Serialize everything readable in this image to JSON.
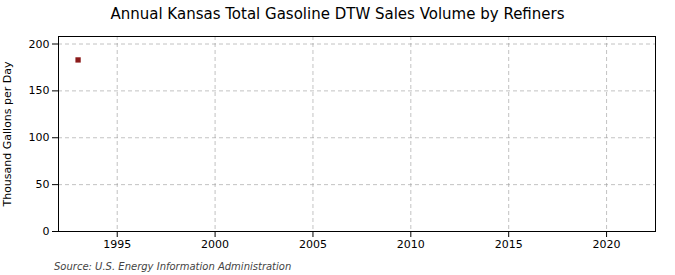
{
  "chart_data": {
    "type": "scatter",
    "title": "Annual Kansas Total Gasoline DTW Sales Volume by Refiners",
    "ylabel": "Thousand Gallons per Day",
    "annotation": "Source: U.S. Energy Information Administration",
    "x": [
      1993
    ],
    "values": [
      183
    ],
    "color": "#8b1a1a",
    "marker": "square",
    "xlim": [
      1992,
      2022.5
    ],
    "xticks": [
      1995,
      2000,
      2005,
      2010,
      2015,
      2020
    ],
    "ylim": [
      0,
      208
    ],
    "yticks": [
      0,
      50,
      100,
      150,
      200
    ],
    "grid": true
  }
}
